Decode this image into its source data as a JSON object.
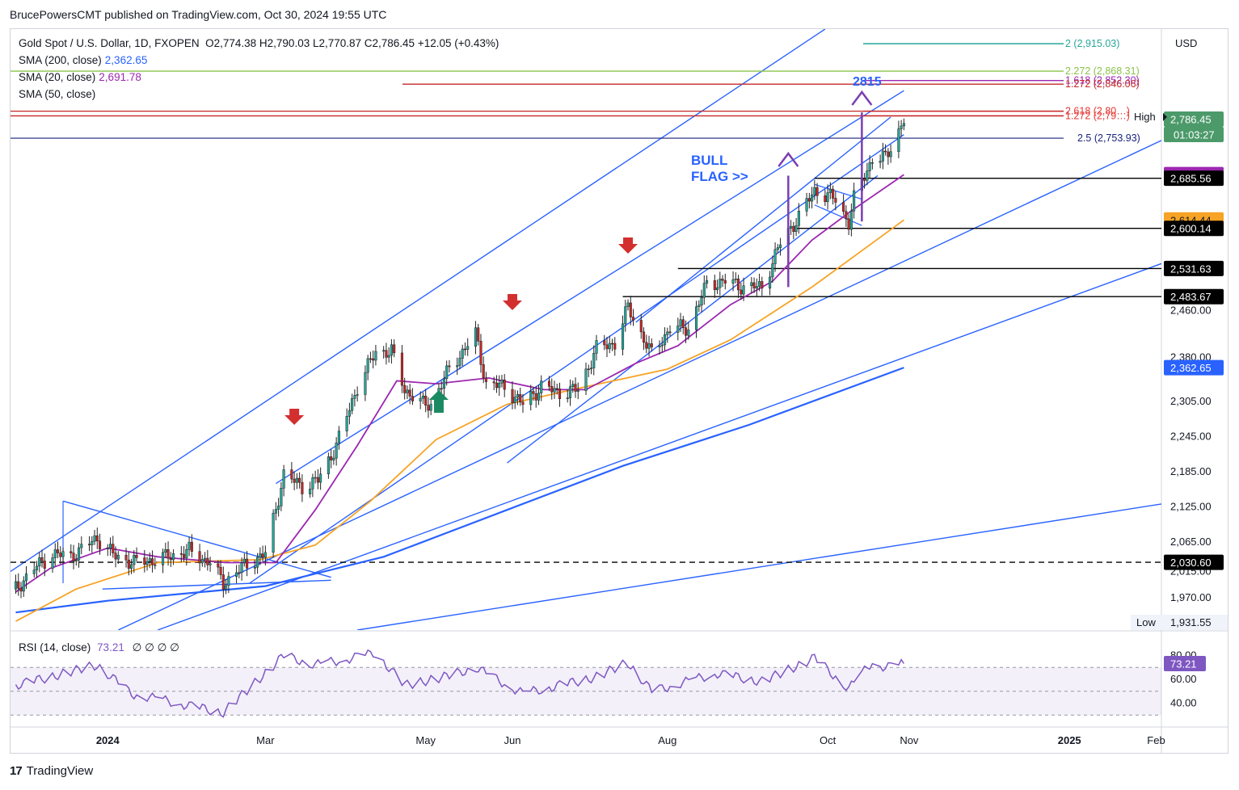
{
  "publisher": "BrucePowersCMT published on TradingView.com, Oct 30, 2024 19:55 UTC",
  "legend": {
    "instrument": "Gold Spot / U.S. Dollar, 1D, FXOPEN",
    "ohlc": "O2,774.38  H2,790.03  L2,770.87  C2,786.45  +12.05 (+0.43%)",
    "sma200_label": "SMA (200, close)",
    "sma200_value": "2,362.65",
    "sma20_label": "SMA (20, close)",
    "sma20_value": "2,691.78",
    "sma50_label": "SMA (50, close)",
    "sma50_value": ""
  },
  "currency": "USD",
  "brand": "TradingView",
  "chart_data": {
    "type": "line",
    "x_ticks": [
      "2024",
      "Mar",
      "May",
      "Jun",
      "Aug",
      "Oct",
      "Nov",
      "2025",
      "Feb"
    ],
    "y_ticks": [
      "2,460.00",
      "2,380.00",
      "2,305.00",
      "2,245.00",
      "2,185.00",
      "2,125.00",
      "2,065.00",
      "2,015.00",
      "1,970.00"
    ],
    "ylim": [
      1915,
      2940
    ],
    "price_path": [
      [
        "2023-11-27",
        1985
      ],
      [
        "2023-12-04",
        2020
      ],
      [
        "2023-12-11",
        2045
      ],
      [
        "2023-12-18",
        2040
      ],
      [
        "2023-12-28",
        2072
      ],
      [
        "2024-01-04",
        2040
      ],
      [
        "2024-01-11",
        2030
      ],
      [
        "2024-01-19",
        2035
      ],
      [
        "2024-02-01",
        2050
      ],
      [
        "2024-02-09",
        2030
      ],
      [
        "2024-02-14",
        1995
      ],
      [
        "2024-02-22",
        2025
      ],
      [
        "2024-03-01",
        2045
      ],
      [
        "2024-03-08",
        2180
      ],
      [
        "2024-03-15",
        2160
      ],
      [
        "2024-03-21",
        2170
      ],
      [
        "2024-03-28",
        2230
      ],
      [
        "2024-04-05",
        2330
      ],
      [
        "2024-04-12",
        2390
      ],
      [
        "2024-04-18",
        2390
      ],
      [
        "2024-04-23",
        2325
      ],
      [
        "2024-04-30",
        2300
      ],
      [
        "2024-05-03",
        2300
      ],
      [
        "2024-05-10",
        2360
      ],
      [
        "2024-05-20",
        2420
      ],
      [
        "2024-05-24",
        2335
      ],
      [
        "2024-05-31",
        2330
      ],
      [
        "2024-06-07",
        2300
      ],
      [
        "2024-06-14",
        2330
      ],
      [
        "2024-06-21",
        2320
      ],
      [
        "2024-06-28",
        2325
      ],
      [
        "2024-07-05",
        2395
      ],
      [
        "2024-07-12",
        2405
      ],
      [
        "2024-07-17",
        2465
      ],
      [
        "2024-07-26",
        2385
      ],
      [
        "2024-08-02",
        2430
      ],
      [
        "2024-08-09",
        2430
      ],
      [
        "2024-08-16",
        2505
      ],
      [
        "2024-08-23",
        2510
      ],
      [
        "2024-08-30",
        2500
      ],
      [
        "2024-09-06",
        2500
      ],
      [
        "2024-09-13",
        2575
      ],
      [
        "2024-09-20",
        2620
      ],
      [
        "2024-09-26",
        2665
      ],
      [
        "2024-10-04",
        2650
      ],
      [
        "2024-10-09",
        2610
      ],
      [
        "2024-10-11",
        2650
      ],
      [
        "2024-10-18",
        2720
      ],
      [
        "2024-10-23",
        2720
      ],
      [
        "2024-10-30",
        2786
      ]
    ],
    "sma20": [
      [
        "2023-11-27",
        1980
      ],
      [
        "2023-12-10",
        2020
      ],
      [
        "2024-01-01",
        2055
      ],
      [
        "2024-01-20",
        2040
      ],
      [
        "2024-02-15",
        2030
      ],
      [
        "2024-03-05",
        2030
      ],
      [
        "2024-03-20",
        2120
      ],
      [
        "2024-04-05",
        2230
      ],
      [
        "2024-04-20",
        2340
      ],
      [
        "2024-05-05",
        2335
      ],
      [
        "2024-05-25",
        2345
      ],
      [
        "2024-06-15",
        2325
      ],
      [
        "2024-07-01",
        2325
      ],
      [
        "2024-07-20",
        2370
      ],
      [
        "2024-08-05",
        2400
      ],
      [
        "2024-08-25",
        2470
      ],
      [
        "2024-09-10",
        2510
      ],
      [
        "2024-09-25",
        2580
      ],
      [
        "2024-10-10",
        2630
      ],
      [
        "2024-10-30",
        2691.78
      ]
    ],
    "sma50": [
      [
        "2023-11-27",
        1930
      ],
      [
        "2023-12-20",
        1985
      ],
      [
        "2024-01-20",
        2030
      ],
      [
        "2024-02-28",
        2035
      ],
      [
        "2024-03-20",
        2060
      ],
      [
        "2024-04-10",
        2135
      ],
      [
        "2024-05-05",
        2240
      ],
      [
        "2024-06-01",
        2300
      ],
      [
        "2024-07-01",
        2330
      ],
      [
        "2024-08-01",
        2360
      ],
      [
        "2024-08-25",
        2410
      ],
      [
        "2024-09-25",
        2500
      ],
      [
        "2024-10-30",
        2614.44
      ]
    ],
    "sma200": [
      [
        "2023-11-27",
        1945
      ],
      [
        "2024-01-01",
        1965
      ],
      [
        "2024-03-01",
        1990
      ],
      [
        "2024-04-15",
        2040
      ],
      [
        "2024-06-01",
        2120
      ],
      [
        "2024-07-15",
        2195
      ],
      [
        "2024-09-01",
        2265
      ],
      [
        "2024-10-30",
        2362.65
      ]
    ],
    "rsi": {
      "label": "RSI (14, close)",
      "value": "73.21",
      "na": "∅ ∅ ∅ ∅",
      "ticks": [
        "80.00",
        "60.00",
        "40.00"
      ],
      "series": [
        [
          "2023-11-27",
          55
        ],
        [
          "2023-12-10",
          62
        ],
        [
          "2023-12-28",
          72
        ],
        [
          "2024-01-10",
          48
        ],
        [
          "2024-02-14",
          32
        ],
        [
          "2024-03-08",
          80
        ],
        [
          "2024-03-20",
          72
        ],
        [
          "2024-04-12",
          82
        ],
        [
          "2024-04-23",
          55
        ],
        [
          "2024-05-10",
          63
        ],
        [
          "2024-05-20",
          70
        ],
        [
          "2024-06-07",
          48
        ],
        [
          "2024-07-05",
          62
        ],
        [
          "2024-07-17",
          74
        ],
        [
          "2024-07-26",
          50
        ],
        [
          "2024-08-20",
          65
        ],
        [
          "2024-09-06",
          58
        ],
        [
          "2024-09-26",
          78
        ],
        [
          "2024-10-09",
          52
        ],
        [
          "2024-10-18",
          75
        ],
        [
          "2024-10-23",
          70
        ],
        [
          "2024-10-30",
          73.21
        ]
      ]
    },
    "price_labels": [
      {
        "text": "2,790.03",
        "price": 2790.03,
        "bg": "#ffffff",
        "fg": "#131722"
      },
      {
        "text": "2,786.45",
        "price": 2786.45,
        "bg": "#4c9a6a",
        "fg": "#ffffff"
      },
      {
        "text": "2,691.78",
        "price": 2691.78,
        "bg": "#9c27b0",
        "fg": "#ffffff"
      },
      {
        "text": "2,685.56",
        "price": 2685.56,
        "bg": "#000000",
        "fg": "#ffffff"
      },
      {
        "text": "2,614.44",
        "price": 2614.44,
        "bg": "#f7a325",
        "fg": "#131722"
      },
      {
        "text": "2,600.14",
        "price": 2600.14,
        "bg": "#000000",
        "fg": "#ffffff"
      },
      {
        "text": "2,531.63",
        "price": 2531.63,
        "bg": "#000000",
        "fg": "#ffffff"
      },
      {
        "text": "2,483.67",
        "price": 2483.67,
        "bg": "#000000",
        "fg": "#ffffff"
      },
      {
        "text": "2,362.65",
        "price": 2362.65,
        "bg": "#2962ff",
        "fg": "#ffffff"
      },
      {
        "text": "2,030.60",
        "price": 2030.6,
        "bg": "#000000",
        "fg": "#ffffff"
      }
    ],
    "high_label": "High",
    "low_label": "Low",
    "low_value": "1,931.55",
    "countdown": "01:03:27",
    "fib_levels": [
      {
        "text": "2 (2,915.03)",
        "price": 2915.03,
        "color": "#26a69a"
      },
      {
        "text": "2.272 (2,868.31)",
        "price": 2868.31,
        "color": "#8bc34a"
      },
      {
        "text": "1.618 (2,852.30)",
        "price": 2852.3,
        "color": "#9c27b0"
      },
      {
        "text": "1.272 (2,846.06)",
        "price": 2846.06,
        "color": "#c62828"
      },
      {
        "text": "2.618 (2,80…)",
        "price": 2800,
        "color": "#e53935"
      },
      {
        "text": "1.272 (2,79…)",
        "price": 2792,
        "color": "#e53935"
      },
      {
        "text": "2.5 (2,753.93)",
        "price": 2753.93,
        "color": "#1a237e"
      }
    ],
    "horizontal_levels": [
      2685.56,
      2600.14,
      2531.63,
      2483.67
    ],
    "dashed_level": 2030.6,
    "annotations": {
      "target": "2815",
      "bull_flag": "BULL\nFLAG >>"
    }
  }
}
